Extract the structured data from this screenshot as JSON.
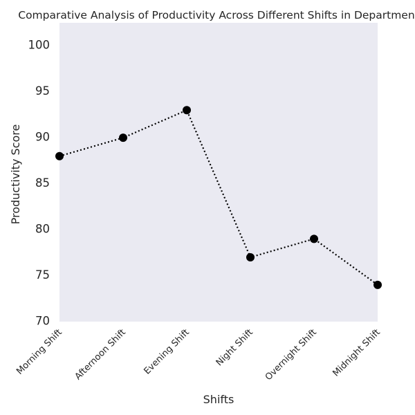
{
  "chart_data": {
    "type": "line",
    "title": "Comparative Analysis of Productivity Across Different Shifts in Department",
    "xlabel": "Shifts",
    "ylabel": "Productivity Score",
    "categories": [
      "Morning Shift",
      "Afternoon Shift",
      "Evening Shift",
      "Night Shift",
      "Overnight Shift",
      "Midnight Shift"
    ],
    "series": [
      {
        "values": [
          88,
          90,
          93,
          77,
          79,
          74
        ]
      }
    ],
    "ylim": [
      70,
      102.5
    ],
    "yticks": [
      70,
      75,
      80,
      85,
      90,
      95,
      100
    ],
    "grid": false,
    "line_style": "dotted",
    "marker": "circle",
    "series_color": "#000000",
    "background_color": "#eaeaf2"
  }
}
